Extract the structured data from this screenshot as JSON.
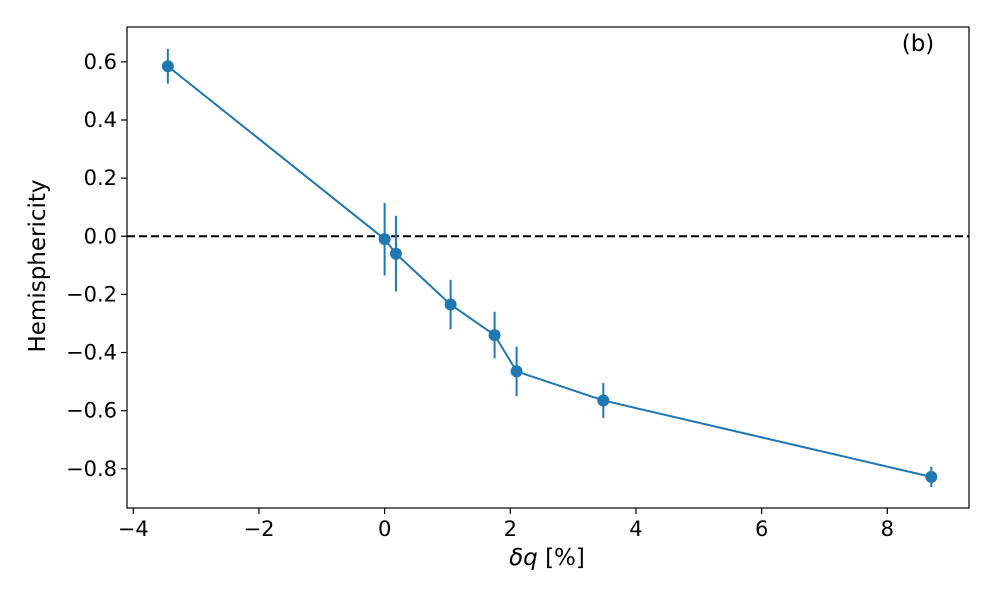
{
  "chart_data": {
    "type": "scatter",
    "panel_label": "(b)",
    "xlabel_symbol": "δq",
    "xlabel_unit": " [%]",
    "ylabel": "Hemisphericity",
    "xlim": [
      -4.1,
      9.3
    ],
    "ylim": [
      -0.935,
      0.72
    ],
    "xticks": [
      -4,
      -2,
      0,
      2,
      4,
      6,
      8
    ],
    "xtick_labels": [
      "−4",
      "−2",
      "0",
      "2",
      "4",
      "6",
      "8"
    ],
    "yticks": [
      0.6,
      0.4,
      0.2,
      0.0,
      -0.2,
      -0.4,
      -0.6,
      -0.8
    ],
    "ytick_labels": [
      "0.6",
      "0.4",
      "0.2",
      "0.0",
      "−0.2",
      "−0.4",
      "−0.6",
      "−0.8"
    ],
    "reference_line": {
      "y": 0.0,
      "style": "dashed",
      "color": "#000000"
    },
    "grid": false,
    "series": [
      {
        "color": "#1f77b4",
        "connected": true,
        "points": [
          {
            "x": -3.45,
            "y": 0.585,
            "err": 0.06
          },
          {
            "x": 0.0,
            "y": -0.01,
            "err": 0.125
          },
          {
            "x": 0.18,
            "y": -0.06,
            "err": 0.13
          },
          {
            "x": 1.05,
            "y": -0.235,
            "err": 0.085
          },
          {
            "x": 1.75,
            "y": -0.34,
            "err": 0.08
          },
          {
            "x": 2.1,
            "y": -0.465,
            "err": 0.085
          },
          {
            "x": 3.48,
            "y": -0.565,
            "err": 0.06
          },
          {
            "x": 8.7,
            "y": -0.828,
            "err": 0.035
          }
        ]
      }
    ]
  }
}
